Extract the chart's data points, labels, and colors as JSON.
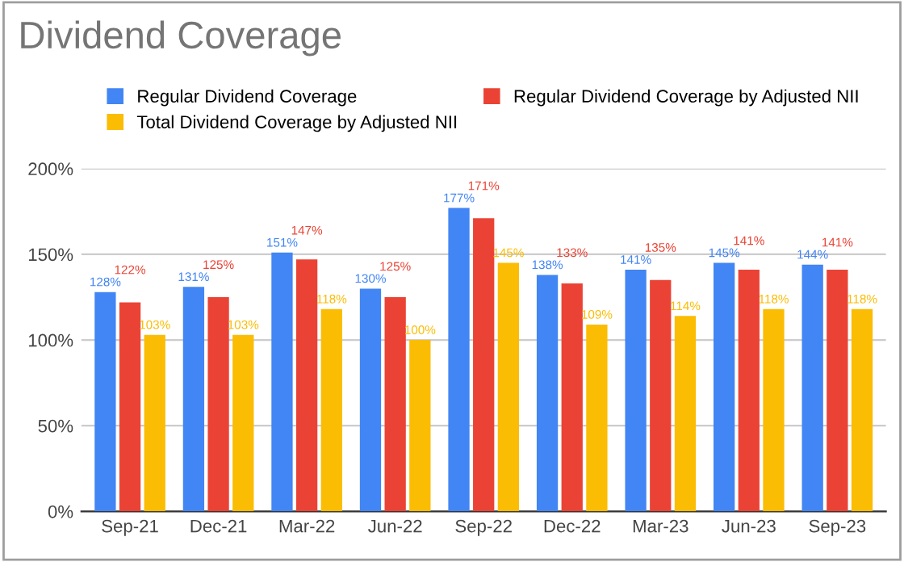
{
  "chart_data": {
    "type": "bar",
    "title": "Dividend Coverage",
    "categories": [
      "Sep-21",
      "Dec-21",
      "Mar-22",
      "Jun-22",
      "Sep-22",
      "Dec-22",
      "Mar-23",
      "Jun-23",
      "Sep-23"
    ],
    "series": [
      {
        "name": "Regular Dividend Coverage",
        "color": "#4285f4",
        "values": [
          128,
          131,
          151,
          130,
          177,
          138,
          141,
          145,
          144
        ],
        "value_labels": [
          "128%",
          "131%",
          "151%",
          "130%",
          "177%",
          "138%",
          "141%",
          "145%",
          "144%"
        ]
      },
      {
        "name": "Regular Dividend Coverage by Adjusted NII",
        "color": "#ea4335",
        "values": [
          122,
          125,
          147,
          125,
          171,
          133,
          135,
          141,
          141
        ],
        "value_labels": [
          "122%",
          "125%",
          "147%",
          "125%",
          "171%",
          "133%",
          "135%",
          "141%",
          "141%"
        ]
      },
      {
        "name": "Total Dividend Coverage by Adjusted NII",
        "color": "#fbbc04",
        "values": [
          103,
          103,
          118,
          100,
          145,
          109,
          114,
          118,
          118
        ],
        "value_labels": [
          "103%",
          "103%",
          "118%",
          "100%",
          "145%",
          "109%",
          "114%",
          "118%",
          "118%"
        ]
      }
    ],
    "ylim": [
      0,
      200
    ],
    "yticks": [
      {
        "value": 0,
        "label": "0%"
      },
      {
        "value": 50,
        "label": "50%"
      },
      {
        "value": 100,
        "label": "100%"
      },
      {
        "value": 150,
        "label": "150%"
      },
      {
        "value": 200,
        "label": "200%"
      }
    ],
    "grid": "y",
    "legend": "top"
  }
}
